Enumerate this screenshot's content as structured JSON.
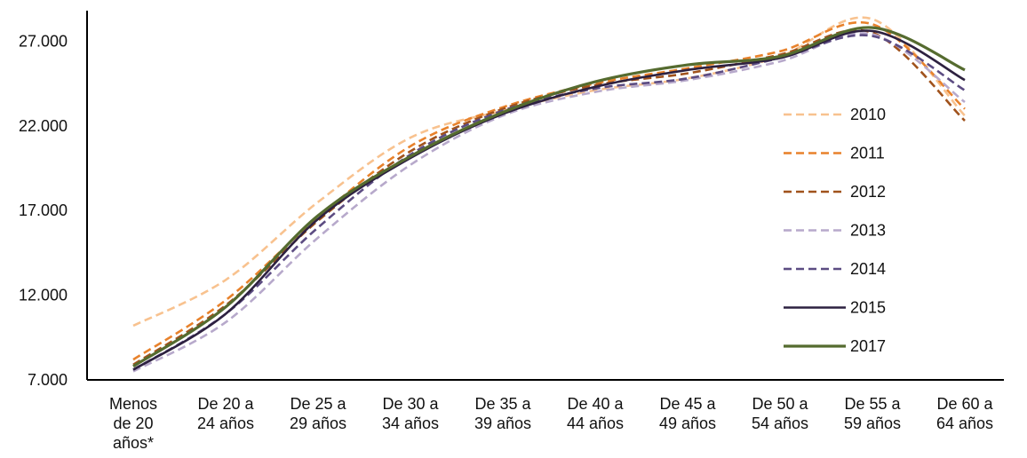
{
  "chart_data": {
    "type": "line",
    "title": "",
    "xlabel": "",
    "ylabel": "",
    "categories": [
      [
        "Menos",
        "de 20",
        "años*"
      ],
      [
        "De 20 a",
        "24 años"
      ],
      [
        "De 25 a",
        "29 años"
      ],
      [
        "De 30 a",
        "34 años"
      ],
      [
        "De 35 a",
        "39 años"
      ],
      [
        "De 40 a",
        "44 años"
      ],
      [
        "De 45 a",
        "49 años"
      ],
      [
        "De 50 a",
        "54 años"
      ],
      [
        "De 55 a",
        "59 años"
      ],
      [
        "De 60 a",
        "64 años"
      ]
    ],
    "yticks": [
      "7.000",
      "12.000",
      "17.000",
      "22.000",
      "27.000"
    ],
    "ytick_values": [
      7000,
      12000,
      17000,
      22000,
      27000
    ],
    "ylim": [
      7000,
      28800
    ],
    "legend_position": "right",
    "series": [
      {
        "name": "2010",
        "color": "#F8C28F",
        "dash": "dashed",
        "values": [
          10200,
          12900,
          17500,
          21300,
          22900,
          24100,
          24800,
          26100,
          28300,
          22600
        ]
      },
      {
        "name": "2011",
        "color": "#E8822C",
        "dash": "dashed",
        "values": [
          8200,
          11700,
          16600,
          20800,
          23100,
          24500,
          25400,
          26400,
          28000,
          23000
        ]
      },
      {
        "name": "2012",
        "color": "#A0521C",
        "dash": "dashed",
        "values": [
          7900,
          11400,
          16400,
          20500,
          23000,
          24400,
          25100,
          26200,
          27500,
          22300
        ]
      },
      {
        "name": "2013",
        "color": "#B7A9CB",
        "dash": "dashed",
        "values": [
          7500,
          10400,
          15400,
          19700,
          22600,
          24000,
          24700,
          25800,
          27400,
          23400
        ]
      },
      {
        "name": "2014",
        "color": "#5C4C82",
        "dash": "dashed",
        "values": [
          7600,
          10900,
          16000,
          20300,
          22900,
          24200,
          24800,
          26000,
          27300,
          24100
        ]
      },
      {
        "name": "2015",
        "color": "#2D2140",
        "dash": "solid",
        "values": [
          7600,
          10900,
          16500,
          20100,
          22700,
          24300,
          25300,
          26000,
          27600,
          24700
        ]
      },
      {
        "name": "2017",
        "color": "#556B2F",
        "dash": "solid",
        "values": [
          7800,
          11300,
          16700,
          20200,
          22800,
          24600,
          25600,
          26100,
          27800,
          25300
        ]
      }
    ]
  }
}
